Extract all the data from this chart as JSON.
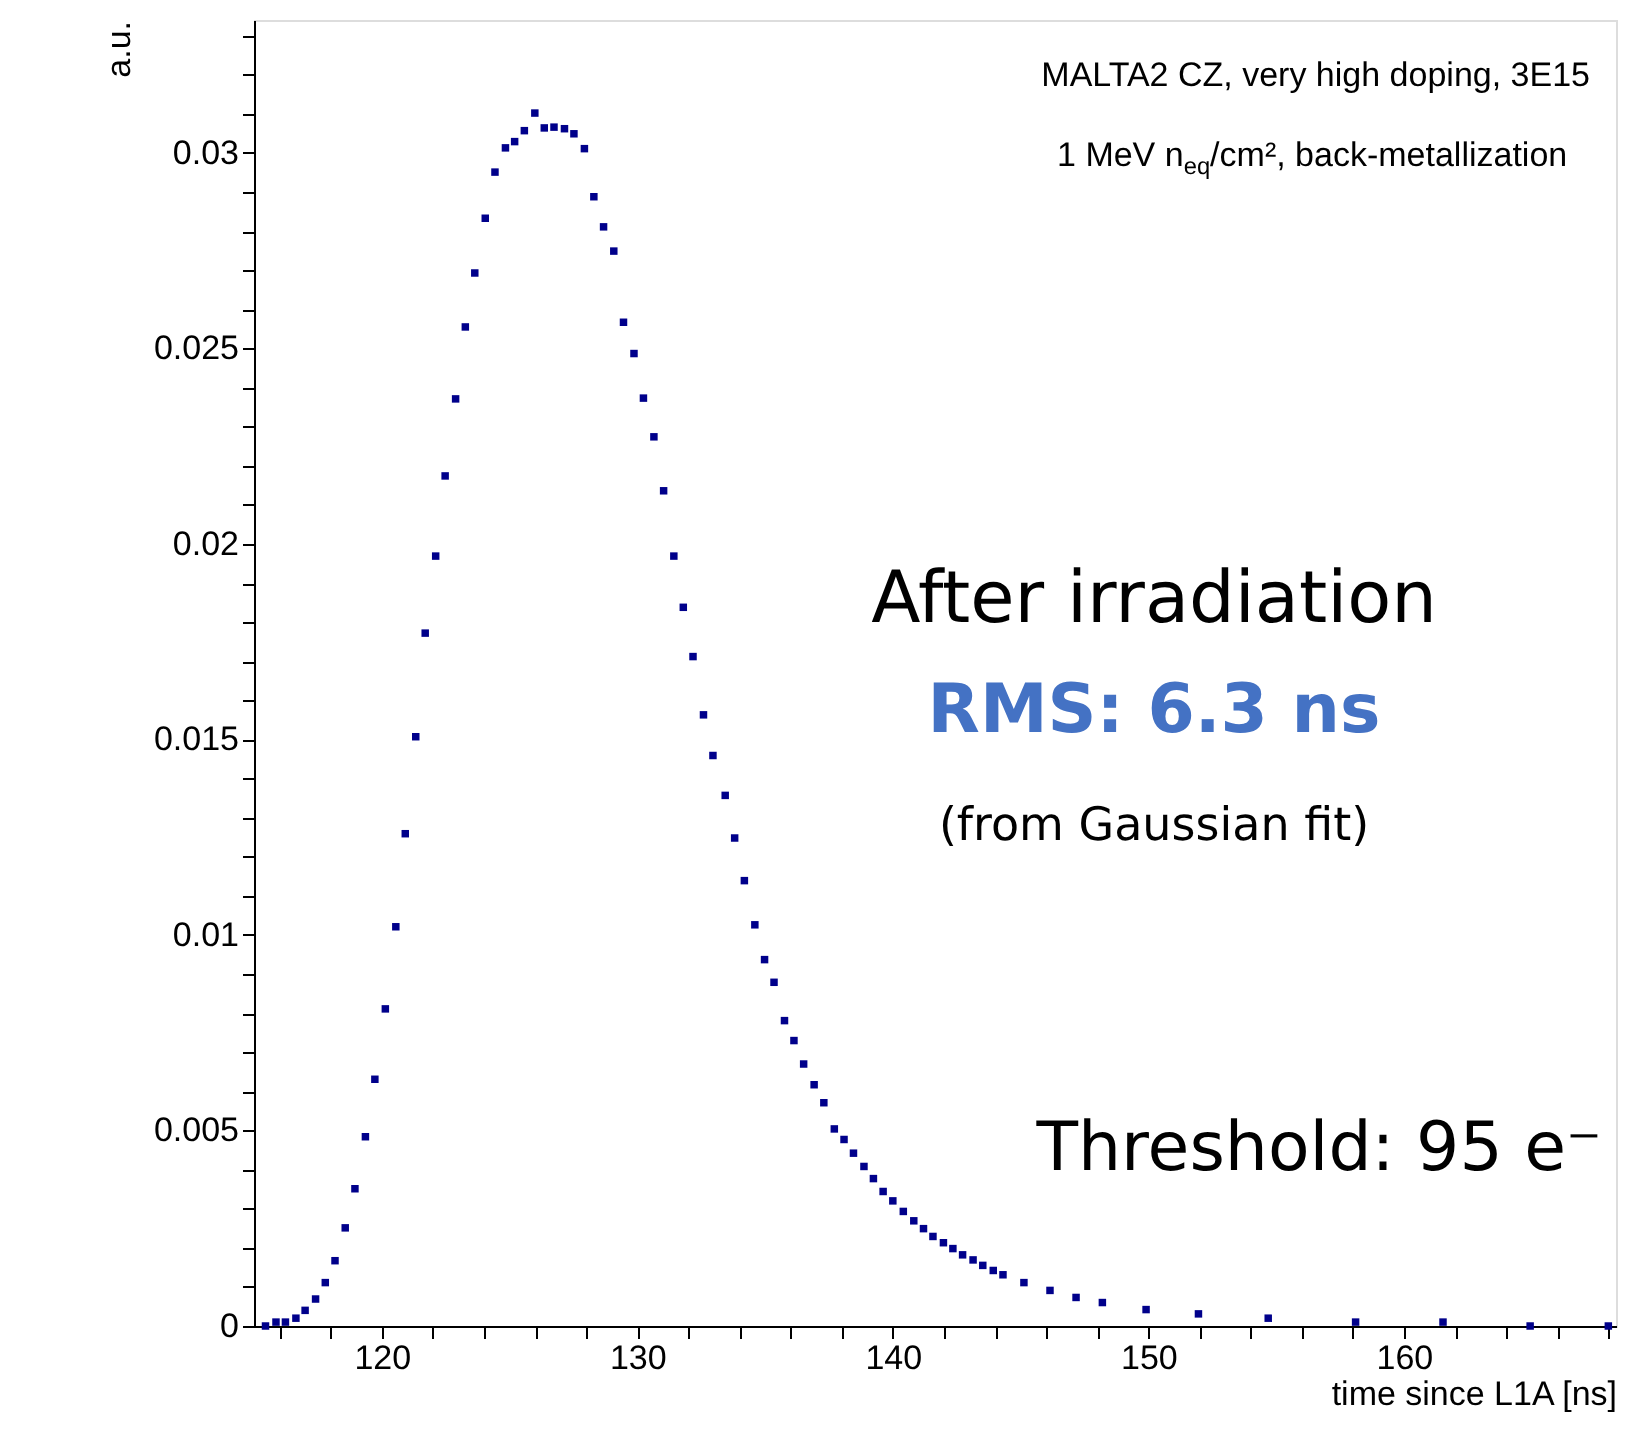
{
  "chart_data": {
    "type": "scatter",
    "marker": "square",
    "color": "#00008b",
    "xlabel": "time since L1A [ns]",
    "ylabel": "a.u.",
    "xlim": [
      115,
      168.3
    ],
    "ylim": [
      0,
      0.0334
    ],
    "xticks": [
      {
        "value": 116,
        "label": null
      },
      {
        "value": 118,
        "label": null
      },
      120,
      {
        "value": 122,
        "label": null
      },
      {
        "value": 124,
        "label": null
      },
      {
        "value": 126,
        "label": null
      },
      {
        "value": 128,
        "label": null
      },
      130,
      {
        "value": 132,
        "label": null
      },
      {
        "value": 134,
        "label": null
      },
      {
        "value": 136,
        "label": null
      },
      {
        "value": 138,
        "label": null
      },
      140,
      {
        "value": 142,
        "label": null
      },
      {
        "value": 144,
        "label": null
      },
      {
        "value": 146,
        "label": null
      },
      {
        "value": 148,
        "label": null
      },
      150,
      {
        "value": 152,
        "label": null
      },
      {
        "value": 154,
        "label": null
      },
      {
        "value": 156,
        "label": null
      },
      {
        "value": 158,
        "label": null
      },
      160,
      {
        "value": 162,
        "label": null
      },
      {
        "value": 164,
        "label": null
      },
      {
        "value": 166,
        "label": null
      },
      {
        "value": 168,
        "label": null
      }
    ],
    "yticks": [
      0,
      {
        "value": 0.001,
        "label": null
      },
      {
        "value": 0.002,
        "label": null
      },
      {
        "value": 0.003,
        "label": null
      },
      {
        "value": 0.004,
        "label": null
      },
      0.005,
      {
        "value": 0.006,
        "label": null
      },
      {
        "value": 0.007,
        "label": null
      },
      {
        "value": 0.008,
        "label": null
      },
      {
        "value": 0.009,
        "label": null
      },
      0.01,
      {
        "value": 0.011,
        "label": null
      },
      {
        "value": 0.012,
        "label": null
      },
      {
        "value": 0.013,
        "label": null
      },
      {
        "value": 0.014,
        "label": null
      },
      0.015,
      {
        "value": 0.016,
        "label": null
      },
      {
        "value": 0.017,
        "label": null
      },
      {
        "value": 0.018,
        "label": null
      },
      {
        "value": 0.019,
        "label": null
      },
      0.02,
      {
        "value": 0.021,
        "label": null
      },
      {
        "value": 0.022,
        "label": null
      },
      {
        "value": 0.023,
        "label": null
      },
      {
        "value": 0.024,
        "label": null
      },
      0.025,
      {
        "value": 0.026,
        "label": null
      },
      {
        "value": 0.027,
        "label": null
      },
      {
        "value": 0.028,
        "label": null
      },
      {
        "value": 0.029,
        "label": null
      },
      0.03,
      {
        "value": 0.031,
        "label": null
      },
      {
        "value": 0.032,
        "label": null
      },
      {
        "value": 0.033,
        "label": null
      }
    ],
    "x": [
      115.45,
      115.86,
      116.23,
      116.64,
      117.0,
      117.41,
      117.79,
      118.17,
      118.57,
      118.95,
      119.36,
      119.73,
      120.14,
      120.55,
      120.92,
      121.33,
      121.7,
      122.11,
      122.48,
      122.89,
      123.27,
      123.64,
      124.05,
      124.43,
      124.84,
      125.2,
      125.58,
      125.99,
      126.36,
      126.74,
      127.15,
      127.52,
      127.93,
      128.3,
      128.68,
      129.08,
      129.46,
      129.87,
      130.24,
      130.65,
      131.03,
      131.43,
      131.8,
      132.18,
      132.59,
      132.96,
      133.44,
      133.81,
      134.19,
      134.6,
      134.98,
      135.35,
      135.76,
      136.13,
      136.51,
      136.92,
      137.3,
      137.71,
      138.09,
      138.46,
      138.87,
      139.24,
      139.62,
      140.0,
      140.41,
      140.82,
      141.2,
      141.57,
      141.98,
      142.35,
      142.73,
      143.14,
      143.52,
      143.93,
      144.31,
      145.13,
      146.15,
      147.17,
      148.2,
      149.91,
      151.96,
      154.69,
      158.11,
      161.53,
      164.94,
      168.0
    ],
    "values": [
      0.0,
      0.0001,
      0.0001,
      0.0002,
      0.0004,
      0.00069,
      0.00111,
      0.00167,
      0.00251,
      0.00351,
      0.00484,
      0.00631,
      0.00811,
      0.01021,
      0.01259,
      0.01507,
      0.01772,
      0.01969,
      0.02174,
      0.02371,
      0.02555,
      0.02693,
      0.02833,
      0.02951,
      0.03013,
      0.03029,
      0.03057,
      0.03102,
      0.03064,
      0.03066,
      0.03062,
      0.03049,
      0.03011,
      0.02888,
      0.02811,
      0.02749,
      0.02567,
      0.02487,
      0.02373,
      0.02274,
      0.02136,
      0.01969,
      0.01838,
      0.01712,
      0.01563,
      0.01459,
      0.01357,
      0.01248,
      0.01139,
      0.01026,
      0.00937,
      0.00879,
      0.00781,
      0.0073,
      0.0067,
      0.00617,
      0.00571,
      0.00504,
      0.00477,
      0.00442,
      0.00408,
      0.00377,
      0.00344,
      0.0032,
      0.00293,
      0.00269,
      0.00249,
      0.00229,
      0.00213,
      0.00198,
      0.00182,
      0.00169,
      0.00155,
      0.00142,
      0.00131,
      0.00111,
      0.00091,
      0.00073,
      0.0006,
      0.00042,
      0.00031,
      0.0002,
      0.0001,
      0.0001,
      0.0,
      0.0
    ],
    "annotations": [
      "MALTA2 CZ, very high doping, 3E15",
      "1 MeV n$_{eq}$/cm², back-metallization",
      "After irradiation",
      "RMS: 6.3 ns",
      "(from Gaussian fit)",
      "Threshold: 95 e⁻"
    ]
  }
}
